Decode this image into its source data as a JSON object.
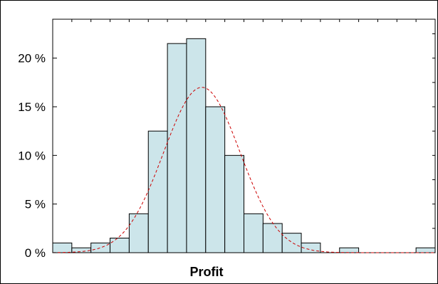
{
  "chart_data": {
    "type": "bar",
    "subtype": "histogram",
    "title": "",
    "xlabel": "Profit",
    "ylabel": "",
    "ylim": [
      0,
      24
    ],
    "yticks": [
      0,
      5,
      10,
      15,
      20
    ],
    "ytick_labels": [
      "0 %",
      "5 %",
      "10 %",
      "15 %",
      "20 %"
    ],
    "values": [
      1.0,
      0.5,
      1.0,
      1.5,
      4.0,
      12.5,
      21.5,
      22.0,
      15.0,
      10.0,
      4.0,
      3.0,
      2.0,
      1.0,
      0.0,
      0.5,
      0.0,
      0.0,
      0.0,
      0.5
    ],
    "bar_color": "#cce5ea",
    "bar_edge_color": "#000000",
    "fit_curve": {
      "type": "normal",
      "peak": 17.0,
      "peak_bin": 7.8,
      "sd_bins": 2.0,
      "color": "#cc0000",
      "style": "dashed"
    },
    "grid": false,
    "legend": "none"
  }
}
